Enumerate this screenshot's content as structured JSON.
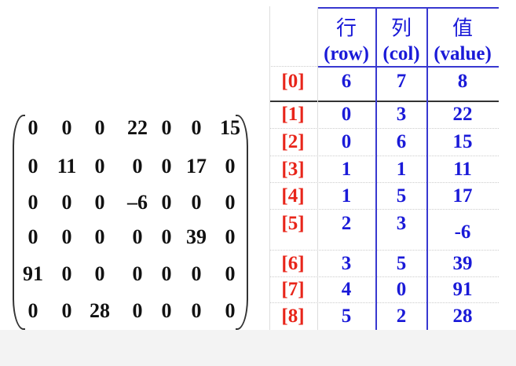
{
  "matrix": [
    [
      "0",
      "0",
      "0",
      "22",
      "0",
      "0",
      "15"
    ],
    [
      "0",
      "11",
      "0",
      "0",
      "0",
      "17",
      "0"
    ],
    [
      "0",
      "0",
      "0",
      "–6",
      "0",
      "0",
      "0"
    ],
    [
      "0",
      "0",
      "0",
      "0",
      "0",
      "39",
      "0"
    ],
    [
      "91",
      "0",
      "0",
      "0",
      "0",
      "0",
      "0"
    ],
    [
      "0",
      "0",
      "28",
      "0",
      "0",
      "0",
      "0"
    ]
  ],
  "table": {
    "headers": [
      {
        "cn": "行",
        "en": "(row)"
      },
      {
        "cn": "列",
        "en": "(col)"
      },
      {
        "cn": "值",
        "en": "(value)"
      }
    ],
    "rows": [
      {
        "index": "[0]",
        "row": "6",
        "col": "7",
        "value": "8"
      },
      {
        "index": "[1]",
        "row": "0",
        "col": "3",
        "value": "22"
      },
      {
        "index": "[2]",
        "row": "0",
        "col": "6",
        "value": "15"
      },
      {
        "index": "[3]",
        "row": "1",
        "col": "1",
        "value": "11"
      },
      {
        "index": "[4]",
        "row": "1",
        "col": "5",
        "value": "17"
      },
      {
        "index": "[5]",
        "row": "2",
        "col": "3",
        "value": "-6"
      },
      {
        "index": "[6]",
        "row": "3",
        "col": "5",
        "value": "39"
      },
      {
        "index": "[7]",
        "row": "4",
        "col": "0",
        "value": "91"
      },
      {
        "index": "[8]",
        "row": "5",
        "col": "2",
        "value": "28"
      }
    ]
  },
  "colors": {
    "index": "#e8251a",
    "table_text": "#1a1ad8",
    "matrix_text": "#111111"
  }
}
